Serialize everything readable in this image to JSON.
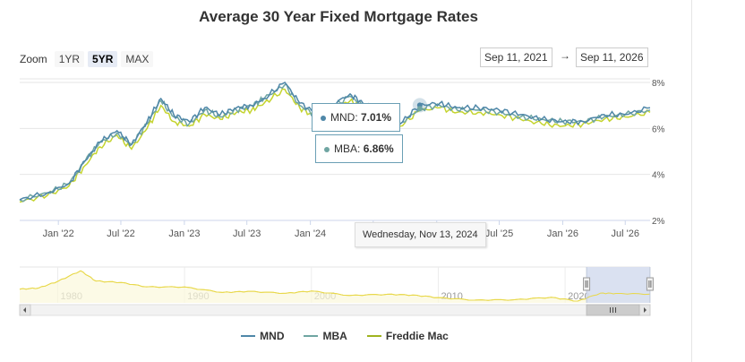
{
  "title": "Average 30 Year Fixed Mortgage Rates",
  "zoom": {
    "label": "Zoom",
    "buttons": [
      "1YR",
      "5YR",
      "MAX"
    ],
    "active": "5YR"
  },
  "range": {
    "from": "Sep 11, 2021",
    "arrow": "→",
    "to": "Sep 11, 2026"
  },
  "tooltip": {
    "date": "Wednesday, Nov 13, 2024",
    "mnd": {
      "name": "MND",
      "value": "7.01%"
    },
    "mba": {
      "name": "MBA",
      "value": "6.86%"
    }
  },
  "legend": [
    "MND",
    "MBA",
    "Freddie Mac"
  ],
  "colors": {
    "mnd": "#4f87a8",
    "mba": "#6fa5a2",
    "freddie": "#c5d42f",
    "navigator_line": "#e8d84a",
    "navigator_mask": "#d6def0"
  },
  "chart_data": [
    {
      "type": "line",
      "title": "Average 30 Year Fixed Mortgage Rates",
      "xlabel": "",
      "ylabel": "",
      "x_range": [
        "2021-09-11",
        "2026-09-11"
      ],
      "ylim": [
        2,
        8
      ],
      "y_ticks": [
        2,
        4,
        6,
        8
      ],
      "y_tick_labels": [
        "2%",
        "4%",
        "6%",
        "8%"
      ],
      "x_ticks": [
        "2022-01-01",
        "2022-07-01",
        "2023-01-01",
        "2023-07-01",
        "2024-01-01",
        "2024-07-01",
        "2025-01-01",
        "2025-07-01",
        "2026-01-01",
        "2026-07-01"
      ],
      "x_tick_labels": [
        "Jan '22",
        "Jul '22",
        "Jan '23",
        "Jul '23",
        "Jan '24",
        "Jul '24",
        "Jan '25",
        "Jul '25",
        "Jan '26",
        "Jul '26"
      ],
      "grid": "horizontal",
      "legend_position": "bottom-center",
      "x": [
        "2021-09-11",
        "2021-12-01",
        "2022-02-01",
        "2022-03-20",
        "2022-05-01",
        "2022-06-20",
        "2022-08-01",
        "2022-09-15",
        "2022-10-25",
        "2022-12-01",
        "2023-01-15",
        "2023-03-01",
        "2023-04-15",
        "2023-06-01",
        "2023-07-15",
        "2023-08-20",
        "2023-10-19",
        "2023-12-01",
        "2024-01-15",
        "2024-03-01",
        "2024-04-25",
        "2024-06-01",
        "2024-07-15",
        "2024-09-17",
        "2024-11-13",
        "2025-01-10",
        "2025-03-01",
        "2025-05-01",
        "2025-07-01",
        "2025-09-01",
        "2025-11-01",
        "2026-01-01",
        "2026-03-01",
        "2026-05-01",
        "2026-07-01",
        "2026-09-11"
      ],
      "series": [
        {
          "name": "MND",
          "values": [
            2.9,
            3.2,
            3.6,
            4.6,
            5.4,
            5.9,
            5.3,
            6.3,
            7.3,
            6.6,
            6.3,
            6.9,
            6.6,
            6.9,
            7.0,
            7.3,
            8.0,
            7.1,
            6.7,
            7.0,
            7.5,
            7.1,
            6.9,
            6.2,
            7.01,
            7.1,
            6.9,
            6.9,
            6.8,
            6.6,
            6.4,
            6.3,
            6.3,
            6.6,
            6.6,
            6.9
          ]
        },
        {
          "name": "MBA",
          "values": [
            2.9,
            3.2,
            3.6,
            4.6,
            5.4,
            5.8,
            5.3,
            6.2,
            7.2,
            6.5,
            6.2,
            6.8,
            6.5,
            6.8,
            7.0,
            7.3,
            7.9,
            7.0,
            6.6,
            6.9,
            7.4,
            7.0,
            6.8,
            6.2,
            6.86,
            7.0,
            6.8,
            6.8,
            6.7,
            6.5,
            6.4,
            6.3,
            6.3,
            6.5,
            6.6,
            6.8
          ]
        },
        {
          "name": "Freddie Mac",
          "values": [
            2.8,
            3.1,
            3.5,
            4.4,
            5.2,
            5.7,
            5.1,
            6.0,
            7.0,
            6.3,
            6.1,
            6.6,
            6.4,
            6.7,
            6.8,
            7.1,
            7.7,
            6.9,
            6.5,
            6.8,
            7.2,
            6.9,
            6.7,
            6.1,
            6.78,
            6.9,
            6.7,
            6.7,
            6.6,
            6.4,
            6.2,
            6.1,
            6.2,
            6.4,
            6.5,
            6.7
          ]
        }
      ]
    },
    {
      "type": "line",
      "title": "",
      "xlabel": "",
      "ylabel": "",
      "x_range": [
        1977,
        2026.7
      ],
      "x_tick_labels": [
        "1980",
        "1990",
        "2000",
        "2010",
        "2020"
      ],
      "x_ticks": [
        1980,
        1990,
        2000,
        2010,
        2020
      ],
      "ylim": [
        2,
        18.5
      ],
      "selected_range": [
        "2021-09-11",
        "2026-09-11"
      ],
      "x": [
        1977,
        1978.5,
        1980,
        1981.8,
        1983,
        1985,
        1987,
        1990,
        1993,
        1995,
        1998,
        2000,
        2003,
        2006,
        2008,
        2010,
        2012.9,
        2016,
        2018.9,
        2021,
        2022.8,
        2024,
        2026.7
      ],
      "series": [
        {
          "name": "Freddie Mac",
          "values": [
            9,
            9.6,
            13.0,
            18.4,
            13.2,
            12.4,
            10.2,
            10.1,
            7.3,
            7.9,
            6.9,
            8.1,
            5.8,
            6.4,
            6.0,
            4.7,
            3.4,
            3.6,
            4.9,
            2.9,
            7.0,
            6.8,
            6.5
          ]
        }
      ]
    }
  ]
}
